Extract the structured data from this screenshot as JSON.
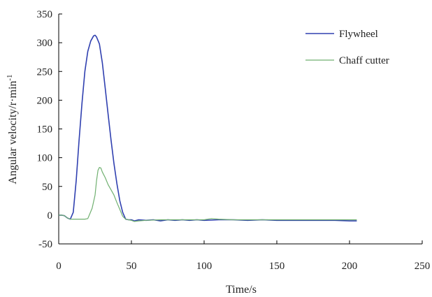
{
  "colors": {
    "flywheel": "#3040b0",
    "chaff_cutter": "#70b070",
    "axis": "#000000",
    "background": "#ffffff"
  },
  "chart_data": {
    "type": "line",
    "title": "",
    "xlabel": "Time/s",
    "ylabel": "Angular velocity/r·min",
    "ylabel_superscript": "-1",
    "xlim": [
      0,
      250
    ],
    "ylim": [
      -50,
      350
    ],
    "x_ticks": [
      0,
      50,
      100,
      150,
      200,
      250
    ],
    "y_ticks": [
      -50,
      0,
      50,
      100,
      150,
      200,
      250,
      300,
      350
    ],
    "grid": false,
    "legend_position": "top-right",
    "series": [
      {
        "name": "Flywheel",
        "color": "#3040b0",
        "points": [
          [
            0,
            0
          ],
          [
            2,
            0
          ],
          [
            4,
            -1
          ],
          [
            6,
            -5
          ],
          [
            8,
            -7
          ],
          [
            10,
            5
          ],
          [
            12,
            60
          ],
          [
            14,
            130
          ],
          [
            16,
            195
          ],
          [
            18,
            250
          ],
          [
            20,
            285
          ],
          [
            22,
            303
          ],
          [
            24,
            312
          ],
          [
            25,
            313
          ],
          [
            26,
            310
          ],
          [
            28,
            298
          ],
          [
            30,
            265
          ],
          [
            32,
            220
          ],
          [
            34,
            175
          ],
          [
            36,
            130
          ],
          [
            38,
            90
          ],
          [
            40,
            55
          ],
          [
            42,
            25
          ],
          [
            44,
            5
          ],
          [
            46,
            -7
          ],
          [
            48,
            -8
          ],
          [
            50,
            -8
          ],
          [
            52,
            -10
          ],
          [
            55,
            -8
          ],
          [
            60,
            -9
          ],
          [
            65,
            -8
          ],
          [
            70,
            -10
          ],
          [
            75,
            -8
          ],
          [
            80,
            -9
          ],
          [
            85,
            -8
          ],
          [
            90,
            -9
          ],
          [
            95,
            -8
          ],
          [
            100,
            -9
          ],
          [
            110,
            -8
          ],
          [
            120,
            -8
          ],
          [
            130,
            -9
          ],
          [
            140,
            -8
          ],
          [
            150,
            -9
          ],
          [
            160,
            -9
          ],
          [
            170,
            -9
          ],
          [
            180,
            -9
          ],
          [
            190,
            -9
          ],
          [
            200,
            -10
          ],
          [
            205,
            -10
          ]
        ]
      },
      {
        "name": "Chaff cutter",
        "color": "#70b070",
        "points": [
          [
            0,
            0
          ],
          [
            2,
            0
          ],
          [
            4,
            -1
          ],
          [
            6,
            -5
          ],
          [
            8,
            -7
          ],
          [
            10,
            -7
          ],
          [
            12,
            -7
          ],
          [
            15,
            -7
          ],
          [
            18,
            -7
          ],
          [
            20,
            -6
          ],
          [
            21,
            0
          ],
          [
            23,
            12
          ],
          [
            25,
            35
          ],
          [
            26,
            60
          ],
          [
            27,
            78
          ],
          [
            28,
            83
          ],
          [
            29,
            82
          ],
          [
            30,
            75
          ],
          [
            32,
            65
          ],
          [
            34,
            53
          ],
          [
            36,
            44
          ],
          [
            38,
            35
          ],
          [
            40,
            22
          ],
          [
            42,
            10
          ],
          [
            44,
            -2
          ],
          [
            46,
            -7
          ],
          [
            48,
            -8
          ],
          [
            50,
            -9
          ],
          [
            52,
            -11
          ],
          [
            55,
            -10
          ],
          [
            60,
            -9
          ],
          [
            70,
            -8
          ],
          [
            80,
            -8
          ],
          [
            90,
            -8
          ],
          [
            100,
            -8
          ],
          [
            105,
            -6
          ],
          [
            110,
            -7
          ],
          [
            120,
            -8
          ],
          [
            130,
            -8
          ],
          [
            140,
            -8
          ],
          [
            150,
            -8
          ],
          [
            160,
            -8
          ],
          [
            170,
            -8
          ],
          [
            180,
            -8
          ],
          [
            190,
            -8
          ],
          [
            200,
            -8
          ],
          [
            205,
            -8
          ]
        ]
      }
    ]
  }
}
